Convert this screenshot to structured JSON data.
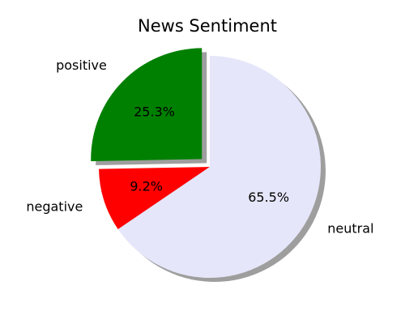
{
  "chart_data": {
    "type": "pie",
    "title": "News Sentiment",
    "categories": [
      "positive",
      "negative",
      "neutral"
    ],
    "values": [
      25.3,
      9.2,
      65.5
    ],
    "value_labels": [
      "25.3%",
      "9.2%",
      "65.5%"
    ],
    "colors": [
      "#008000",
      "#ff0000",
      "#e6e6fa"
    ],
    "explode": [
      0.1,
      0,
      0
    ],
    "start_angle_deg": 90,
    "shadow": true
  }
}
